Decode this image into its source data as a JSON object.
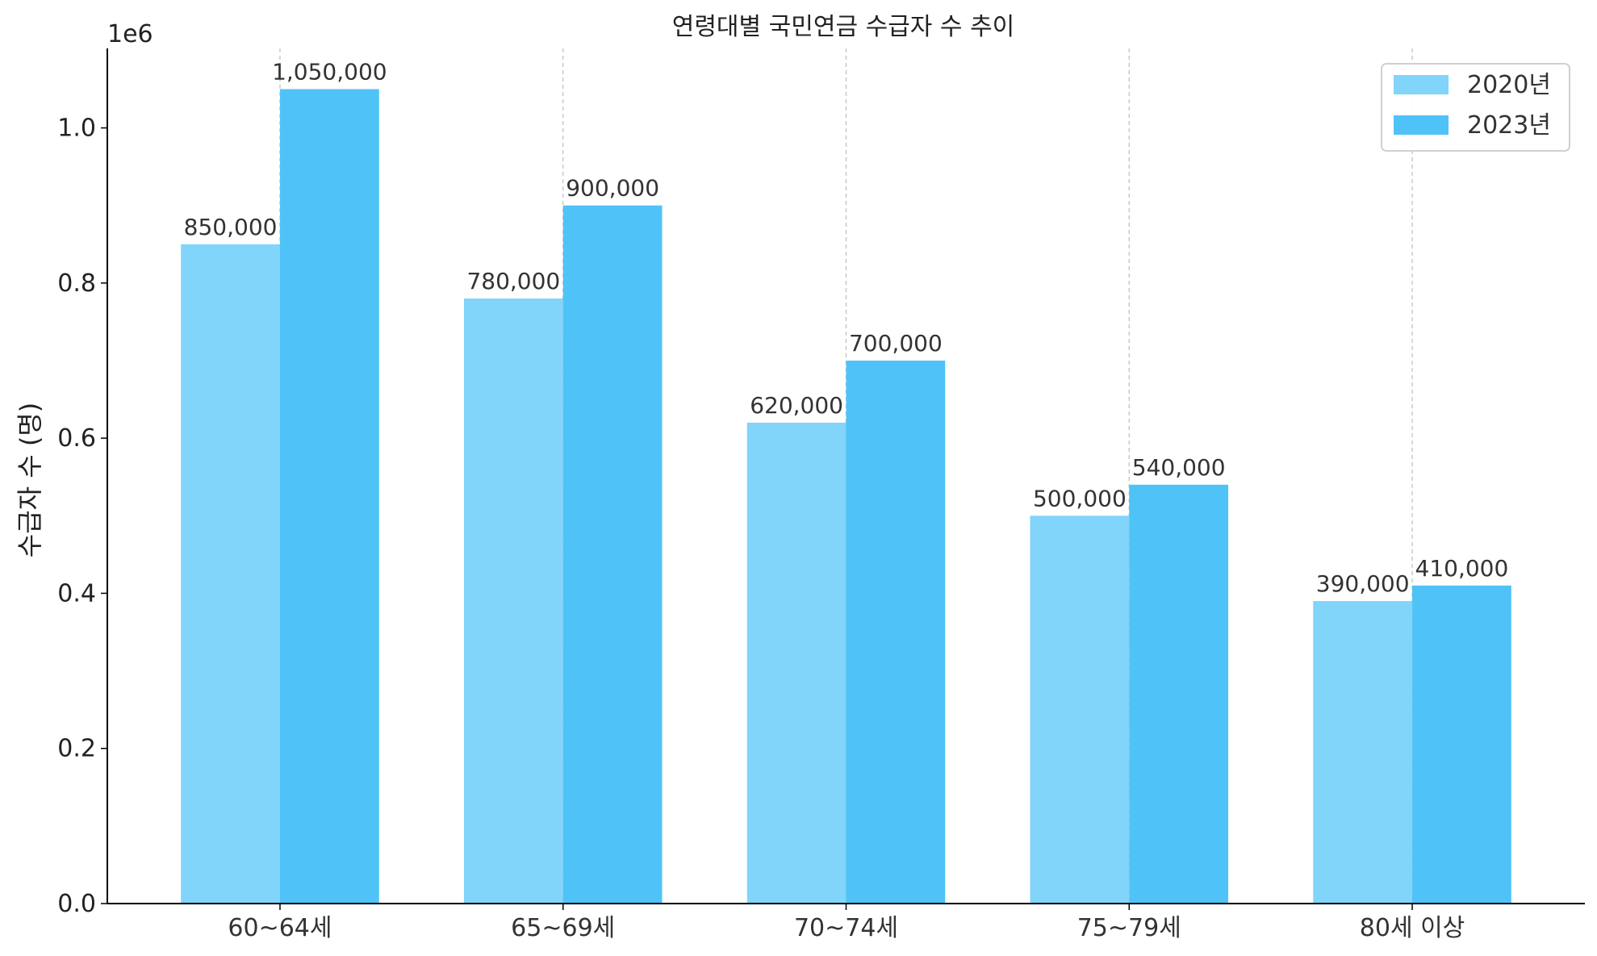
{
  "chart_data": {
    "type": "bar",
    "title": "연령대별 국민연금 수급자 수 추이",
    "ylabel": "수급자 수 (명)",
    "xlabel": "",
    "offset_text": "1e6",
    "categories": [
      "60~64세",
      "65~69세",
      "70~74세",
      "75~79세",
      "80세 이상"
    ],
    "series": [
      {
        "name": "2020년",
        "values": [
          850000,
          780000,
          620000,
          500000,
          390000
        ],
        "color": "#81d4fa"
      },
      {
        "name": "2023년",
        "values": [
          1050000,
          900000,
          700000,
          540000,
          410000
        ],
        "color": "#4fc3f7"
      }
    ],
    "data_labels": [
      [
        "850,000",
        "780,000",
        "620,000",
        "500,000",
        "390,000"
      ],
      [
        "1,050,000",
        "900,000",
        "700,000",
        "540,000",
        "410,000"
      ]
    ],
    "ylim": [
      0,
      1102500
    ],
    "yticks": [
      0,
      200000,
      400000,
      600000,
      800000,
      1000000
    ],
    "ytick_labels": [
      "0.0",
      "0.2",
      "0.4",
      "0.6",
      "0.8",
      "1.0"
    ],
    "grid": "x-dashed",
    "legend_position": "top-right"
  }
}
